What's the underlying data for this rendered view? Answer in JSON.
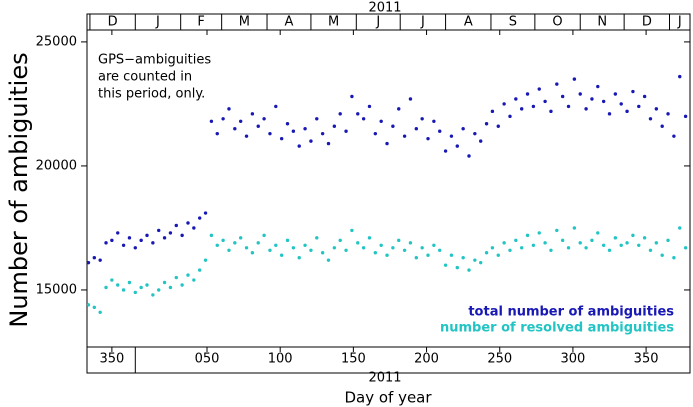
{
  "chart_data": {
    "type": "scatter",
    "ylabel": "Number of ambiguities",
    "xlabel": "Day of year",
    "year_label": "2011",
    "annotation": [
      "GPS−ambiguities",
      "are counted in",
      "this period, only."
    ],
    "xlim": [
      333,
      745
    ],
    "ylim": [
      12700,
      25480
    ],
    "yticks": [
      15000,
      20000,
      25000
    ],
    "xticks": [
      {
        "value": 350,
        "label": "350"
      },
      {
        "value": 415,
        "label": "050"
      },
      {
        "value": 465,
        "label": "100"
      },
      {
        "value": 515,
        "label": "150"
      },
      {
        "value": 565,
        "label": "200"
      },
      {
        "value": 615,
        "label": "250"
      },
      {
        "value": 665,
        "label": "300"
      },
      {
        "value": 715,
        "label": "350"
      }
    ],
    "top_axis": {
      "title": "2011",
      "months": [
        "D",
        "J",
        "F",
        "M",
        "A",
        "M",
        "J",
        "J",
        "A",
        "S",
        "O",
        "N",
        "D",
        "J"
      ],
      "month_starts": [
        335,
        366,
        397,
        425,
        456,
        486,
        517,
        547,
        578,
        609,
        639,
        670,
        700,
        731
      ]
    },
    "legend": "lower right",
    "x": [
      334,
      338,
      342,
      346,
      350,
      354,
      358,
      362,
      366,
      370,
      374,
      378,
      382,
      386,
      390,
      394,
      398,
      402,
      406,
      410,
      414,
      418,
      422,
      426,
      430,
      434,
      438,
      442,
      446,
      450,
      454,
      458,
      462,
      466,
      470,
      474,
      478,
      482,
      486,
      490,
      494,
      498,
      502,
      506,
      510,
      514,
      518,
      522,
      526,
      530,
      534,
      538,
      542,
      546,
      550,
      554,
      558,
      562,
      566,
      570,
      574,
      578,
      582,
      586,
      590,
      594,
      598,
      602,
      606,
      610,
      614,
      618,
      622,
      626,
      630,
      634,
      638,
      642,
      646,
      650,
      654,
      658,
      662,
      666,
      670,
      674,
      678,
      682,
      686,
      690,
      694,
      698,
      702,
      706,
      710,
      714,
      718,
      722,
      726,
      730,
      734,
      738,
      742
    ],
    "series": [
      {
        "name": "total number of ambiguities",
        "color": "#1818b4",
        "values": [
          16100,
          16300,
          16200,
          16900,
          17000,
          17300,
          16800,
          17100,
          16700,
          17000,
          17200,
          16900,
          17400,
          17100,
          17300,
          17600,
          17200,
          17700,
          17500,
          17900,
          18100,
          21800,
          21300,
          21900,
          22300,
          21500,
          21800,
          21200,
          22100,
          21600,
          21900,
          21300,
          22400,
          21100,
          21700,
          21400,
          20800,
          21500,
          21000,
          21900,
          21300,
          20900,
          21600,
          22100,
          21400,
          22800,
          22100,
          21900,
          22400,
          21300,
          21800,
          20900,
          21600,
          22300,
          21200,
          22700,
          21500,
          21900,
          21100,
          21800,
          21400,
          20600,
          21200,
          20800,
          21500,
          20400,
          21300,
          21000,
          21700,
          22200,
          21600,
          22500,
          22000,
          22700,
          22300,
          22900,
          22400,
          23100,
          22600,
          22200,
          23300,
          22800,
          22400,
          23500,
          22900,
          22300,
          22700,
          23200,
          22600,
          22100,
          22900,
          22500,
          22200,
          23000,
          22400,
          22800,
          21900,
          22300,
          21600,
          22100,
          21200,
          23600,
          22000
        ]
      },
      {
        "name": "number of resolved ambiguities",
        "color": "#22c4c4",
        "values": [
          14400,
          14300,
          14100,
          15100,
          15400,
          15200,
          15000,
          15300,
          14900,
          15100,
          15200,
          14800,
          15000,
          15300,
          15100,
          15500,
          15200,
          15600,
          15400,
          15800,
          16200,
          17200,
          16800,
          17000,
          16600,
          16900,
          17100,
          16700,
          16500,
          16900,
          17200,
          16600,
          16800,
          16400,
          17000,
          16700,
          16300,
          16800,
          16600,
          17100,
          16500,
          16200,
          16700,
          17000,
          16600,
          17400,
          16900,
          16700,
          17100,
          16500,
          16800,
          16400,
          16700,
          17000,
          16600,
          16900,
          16300,
          16700,
          16400,
          16800,
          16600,
          16000,
          16400,
          15900,
          16300,
          15800,
          16200,
          16100,
          16500,
          16700,
          16400,
          16900,
          16600,
          17000,
          16700,
          17200,
          16800,
          17300,
          16900,
          16600,
          17400,
          17000,
          16700,
          17500,
          16900,
          16700,
          17000,
          17300,
          16800,
          16600,
          17100,
          16800,
          16900,
          17200,
          16800,
          17100,
          16600,
          16900,
          16400,
          17000,
          16300,
          17500,
          16700
        ]
      }
    ]
  }
}
